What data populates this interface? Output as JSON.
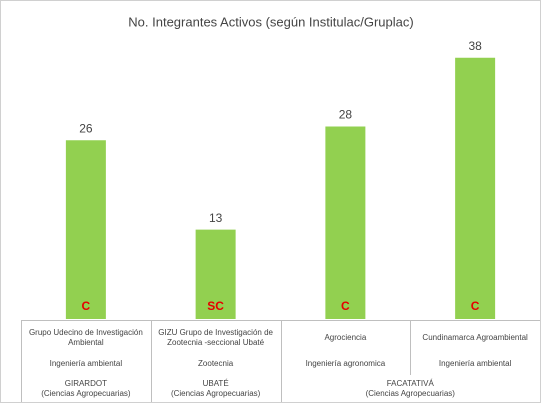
{
  "chart_data": {
    "type": "bar",
    "title": "No. Integrantes Activos (según Institulac/Gruplac)",
    "categories": [
      "Grupo Udecino de Investigación Ambiental",
      "GIZU Grupo de Investigación de Zootecnia -seccional Ubaté",
      "Agrociencia",
      "Cundinamarca Agroambiental"
    ],
    "values": [
      26,
      13,
      28,
      38
    ],
    "bar_labels": [
      "C",
      "SC",
      "C",
      "C"
    ],
    "fields": [
      "Ingeniería ambiental",
      "Zootecnia",
      "Ingeniería agronomica",
      "Ingeniería ambiental"
    ],
    "locations": [
      {
        "name": "GIRARDOT",
        "faculty": "(Ciencias Agropecuarias)"
      },
      {
        "name": "UBATÉ",
        "faculty": "(Ciencias Agropecuarias)"
      },
      {
        "name": "FACATATIVÁ",
        "faculty": "(Ciencias Agropecuarias)"
      }
    ],
    "color": "#92d050",
    "label_color": "#e60000",
    "ylim": [
      0,
      40
    ]
  }
}
